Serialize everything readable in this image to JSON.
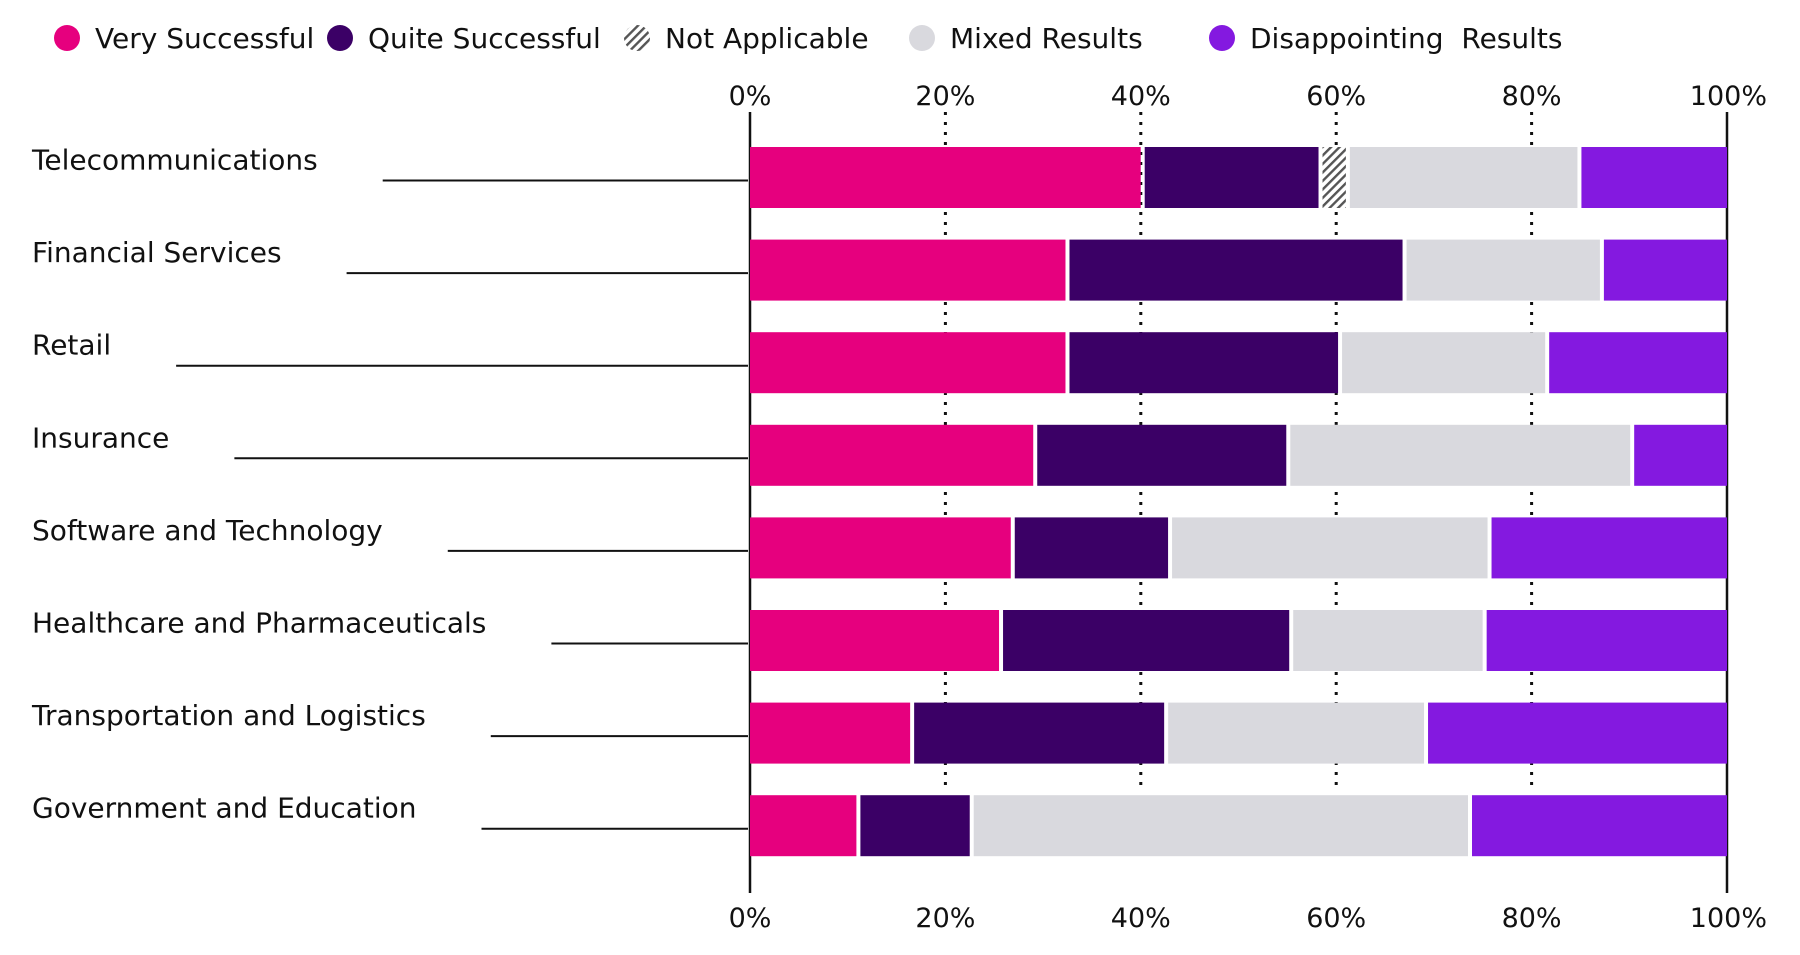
{
  "chart_data": {
    "type": "bar",
    "orientation": "horizontal",
    "stacked": true,
    "title": "",
    "xlabel": "",
    "ylabel": "",
    "xlim": [
      0,
      100
    ],
    "x_tick_labels": [
      "0%",
      "20%",
      "40%",
      "60%",
      "80%",
      "100%"
    ],
    "x_ticks": [
      0,
      20,
      40,
      60,
      80,
      100
    ],
    "grid": "vertical dotted",
    "legend_position": "top",
    "categories": [
      "Telecommunications",
      "Financial Services",
      "Retail",
      "Insurance",
      "Software and Technology",
      "Healthcare and Pharmaceuticals",
      "Transportation and Logistics",
      "Government and Education"
    ],
    "series": [
      {
        "name": "Very Successful",
        "color": "#E6007E",
        "pattern": "solid",
        "values": [
          40.4,
          32.7,
          32.7,
          29.4,
          27.1,
          25.9,
          16.8,
          11.3
        ]
      },
      {
        "name": "Quite Successful",
        "color": "#3B0066",
        "pattern": "solid",
        "values": [
          18.2,
          34.5,
          27.9,
          25.9,
          16.1,
          29.7,
          26.0,
          11.6
        ]
      },
      {
        "name": "Not Applicable",
        "color": "#9E9E9E",
        "pattern": "hatched",
        "values": [
          2.8,
          0,
          0,
          0,
          0,
          0,
          0,
          0
        ]
      },
      {
        "name": "Mixed Results",
        "color": "#D9D9DE",
        "pattern": "solid",
        "values": [
          23.7,
          20.2,
          21.2,
          35.2,
          32.7,
          19.8,
          26.6,
          51.0
        ]
      },
      {
        "name": "Disappointing  Results",
        "color": "#8419E0",
        "pattern": "solid",
        "values": [
          14.9,
          12.6,
          18.2,
          9.5,
          24.1,
          24.6,
          30.6,
          26.1
        ]
      }
    ]
  }
}
